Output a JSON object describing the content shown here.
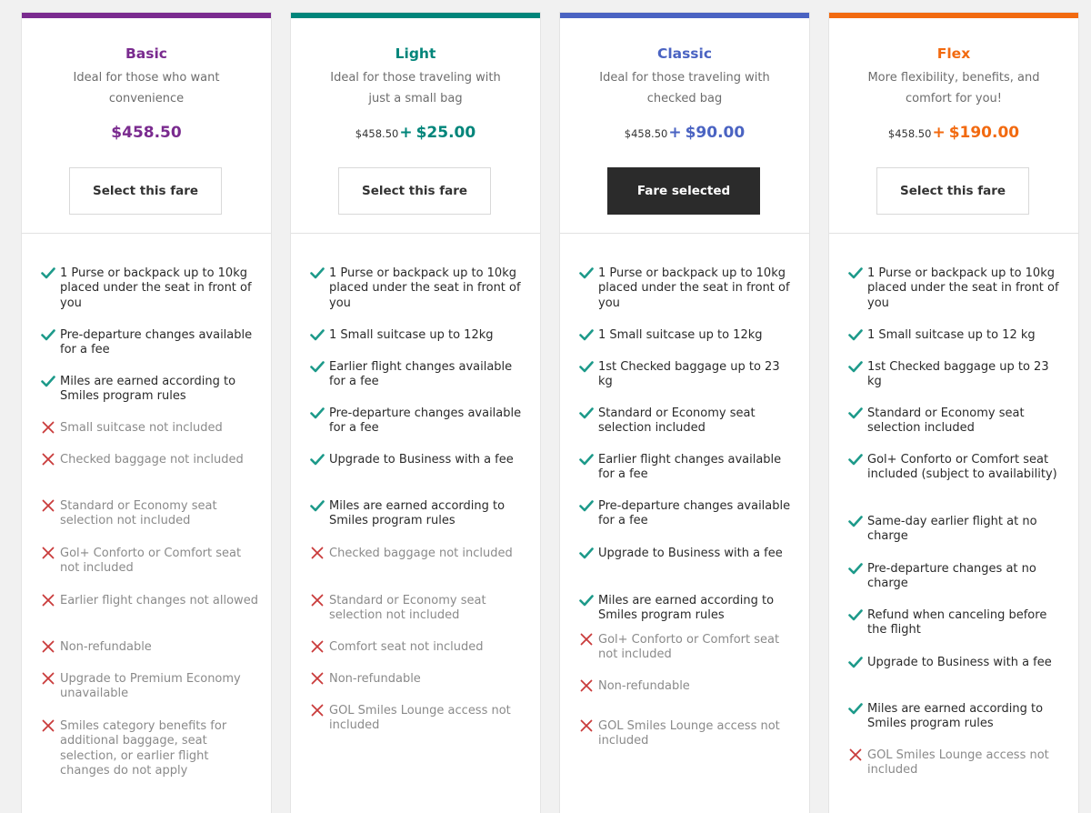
{
  "colors": {
    "check": "#1d9a8a",
    "cross": "#c93b3b"
  },
  "fares": [
    {
      "id": "basic",
      "name": "Basic",
      "color": "#7a2b8f",
      "description": "Ideal for those who want convenience",
      "price_main": "$458.50",
      "button_label": "Select this fare",
      "selected": false,
      "features": [
        {
          "ok": true,
          "text": "1 Purse or backpack up to 10kg placed under the seat in front of you"
        },
        {
          "ok": true,
          "text": "Pre-departure changes available for a fee"
        },
        {
          "ok": true,
          "text": "Miles are earned according to Smiles program rules"
        },
        {
          "ok": false,
          "text": "Small suitcase not included"
        },
        {
          "ok": false,
          "text": "Checked baggage not included"
        },
        {
          "ok": false,
          "text": "Standard or Economy seat selection not included"
        },
        {
          "ok": false,
          "text": "Gol+ Conforto or Comfort seat not included"
        },
        {
          "ok": false,
          "text": "Earlier flight changes not allowed"
        },
        {
          "ok": false,
          "text": "Non-refundable"
        },
        {
          "ok": false,
          "text": "Upgrade to Premium Economy unavailable"
        },
        {
          "ok": false,
          "text": "Smiles category benefits for additional baggage, seat selection, or earlier flight changes do not apply"
        }
      ]
    },
    {
      "id": "light",
      "name": "Light",
      "color": "#00857a",
      "description": "Ideal for those traveling with just a small bag",
      "price_base": "$458.50",
      "price_plus": "+",
      "price_add": "$25.00",
      "button_label": "Select this fare",
      "selected": false,
      "features": [
        {
          "ok": true,
          "text": "1 Purse or backpack up to 10kg placed under the seat in front of you"
        },
        {
          "ok": true,
          "text": "1 Small suitcase up to 12kg"
        },
        {
          "ok": true,
          "text": "Earlier flight changes available for a fee"
        },
        {
          "ok": true,
          "text": "Pre-departure changes available for a fee"
        },
        {
          "ok": true,
          "text": "Upgrade to Business with a fee"
        },
        {
          "ok": true,
          "text": "Miles are earned according to Smiles program rules"
        },
        {
          "ok": false,
          "text": "Checked baggage not included"
        },
        {
          "ok": false,
          "text": "Standard or Economy seat selection not included"
        },
        {
          "ok": false,
          "text": "Comfort seat not included"
        },
        {
          "ok": false,
          "text": "Non-refundable"
        },
        {
          "ok": false,
          "text": "GOL Smiles Lounge access not included"
        }
      ]
    },
    {
      "id": "classic",
      "name": "Classic",
      "color": "#4a63c2",
      "description": "Ideal for those traveling with checked bag",
      "price_base": "$458.50",
      "price_plus": "+",
      "price_add": "$90.00",
      "button_label": "Fare selected",
      "selected": true,
      "features": [
        {
          "ok": true,
          "text": "1 Purse or backpack up to 10kg placed under the seat in front of you"
        },
        {
          "ok": true,
          "text": "1 Small suitcase up to 12kg"
        },
        {
          "ok": true,
          "text": "1st Checked baggage up to 23 kg"
        },
        {
          "ok": true,
          "text": "Standard or Economy seat selection included"
        },
        {
          "ok": true,
          "text": "Earlier flight changes available for a fee"
        },
        {
          "ok": true,
          "text": "Pre-departure changes available for a fee"
        },
        {
          "ok": true,
          "text": "Upgrade to Business with a fee"
        },
        {
          "ok": true,
          "text": "Miles are earned according to Smiles program rules"
        },
        {
          "ok": false,
          "text": "Gol+ Conforto or Comfort seat not included"
        },
        {
          "ok": false,
          "text": "Non-refundable"
        },
        {
          "ok": false,
          "text": "GOL Smiles Lounge access not included"
        }
      ]
    },
    {
      "id": "flex",
      "name": "Flex",
      "color": "#f26a10",
      "description": "More flexibility, benefits, and comfort for you!",
      "price_base": "$458.50",
      "price_plus": "+",
      "price_add": "$190.00",
      "button_label": "Select this fare",
      "selected": false,
      "features": [
        {
          "ok": true,
          "text": "1 Purse or backpack up to 10kg placed under the seat in front of you"
        },
        {
          "ok": true,
          "text": "1 Small suitcase up to 12 kg"
        },
        {
          "ok": true,
          "text": "1st Checked baggage up to 23 kg"
        },
        {
          "ok": true,
          "text": "Standard or Economy seat selection included"
        },
        {
          "ok": true,
          "text": "Gol+ Conforto or Comfort seat included (subject to availability)"
        },
        {
          "ok": true,
          "text": "Same-day earlier flight at no charge"
        },
        {
          "ok": true,
          "text": "Pre-departure changes at no charge"
        },
        {
          "ok": true,
          "text": "Refund when canceling before the flight"
        },
        {
          "ok": true,
          "text": "Upgrade to Business with a fee"
        },
        {
          "ok": true,
          "text": "Miles are earned according to Smiles program rules"
        },
        {
          "ok": false,
          "text": "GOL Smiles Lounge access not included"
        }
      ]
    }
  ]
}
